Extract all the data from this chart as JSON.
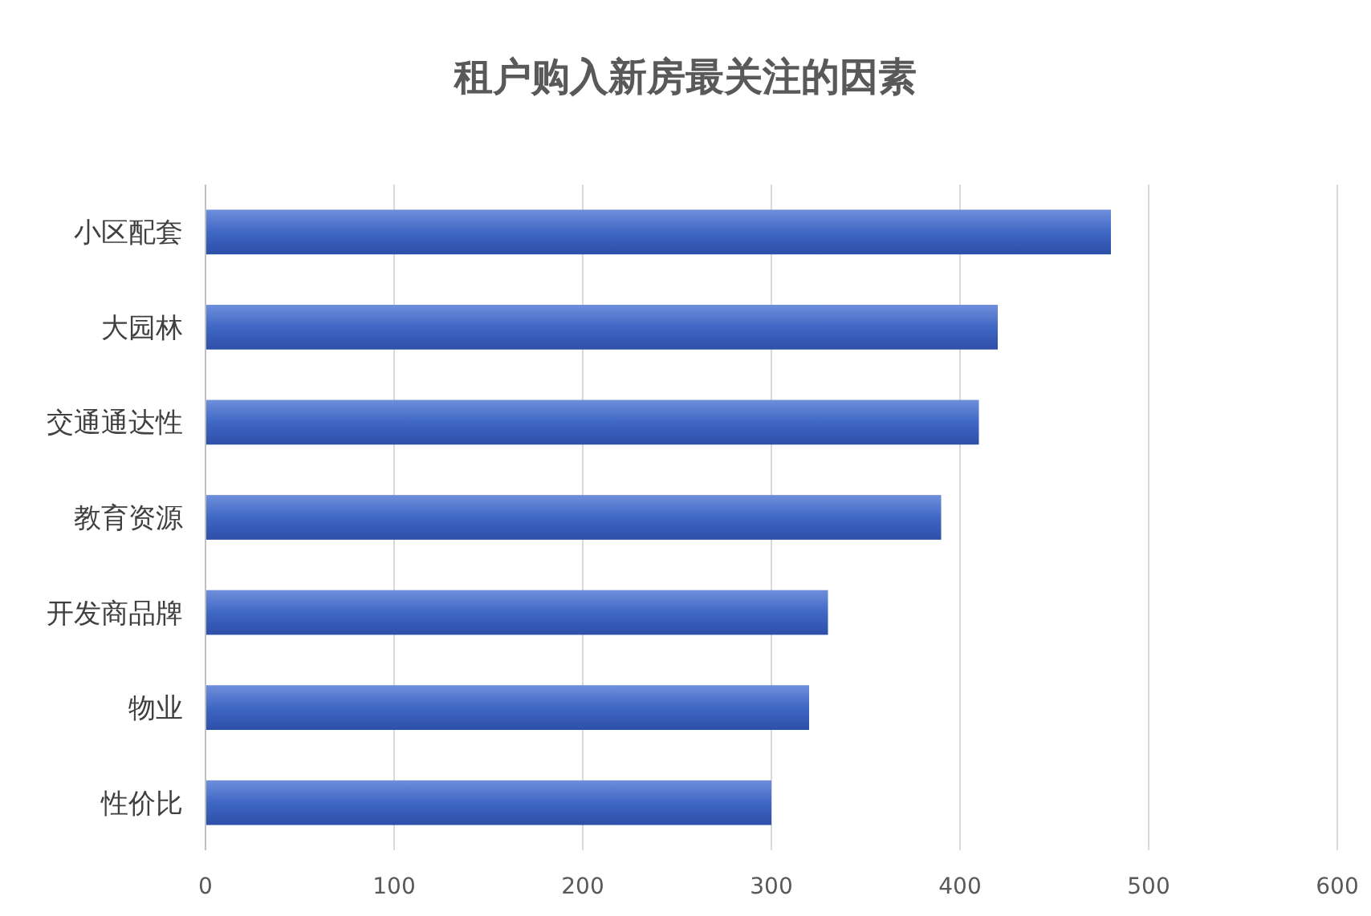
{
  "chart_data": {
    "type": "bar",
    "orientation": "horizontal",
    "title": "租户购入新房最关注的因素",
    "categories": [
      "小区配套",
      "大园林",
      "交通通达性",
      "教育资源",
      "开发商品牌",
      "物业",
      "性价比"
    ],
    "values": [
      480,
      420,
      410,
      390,
      330,
      320,
      300
    ],
    "color": "#3f67c4",
    "xlim": [
      0,
      600
    ],
    "xticks": [
      0,
      100,
      200,
      300,
      400,
      500,
      600
    ],
    "grid": "x"
  }
}
